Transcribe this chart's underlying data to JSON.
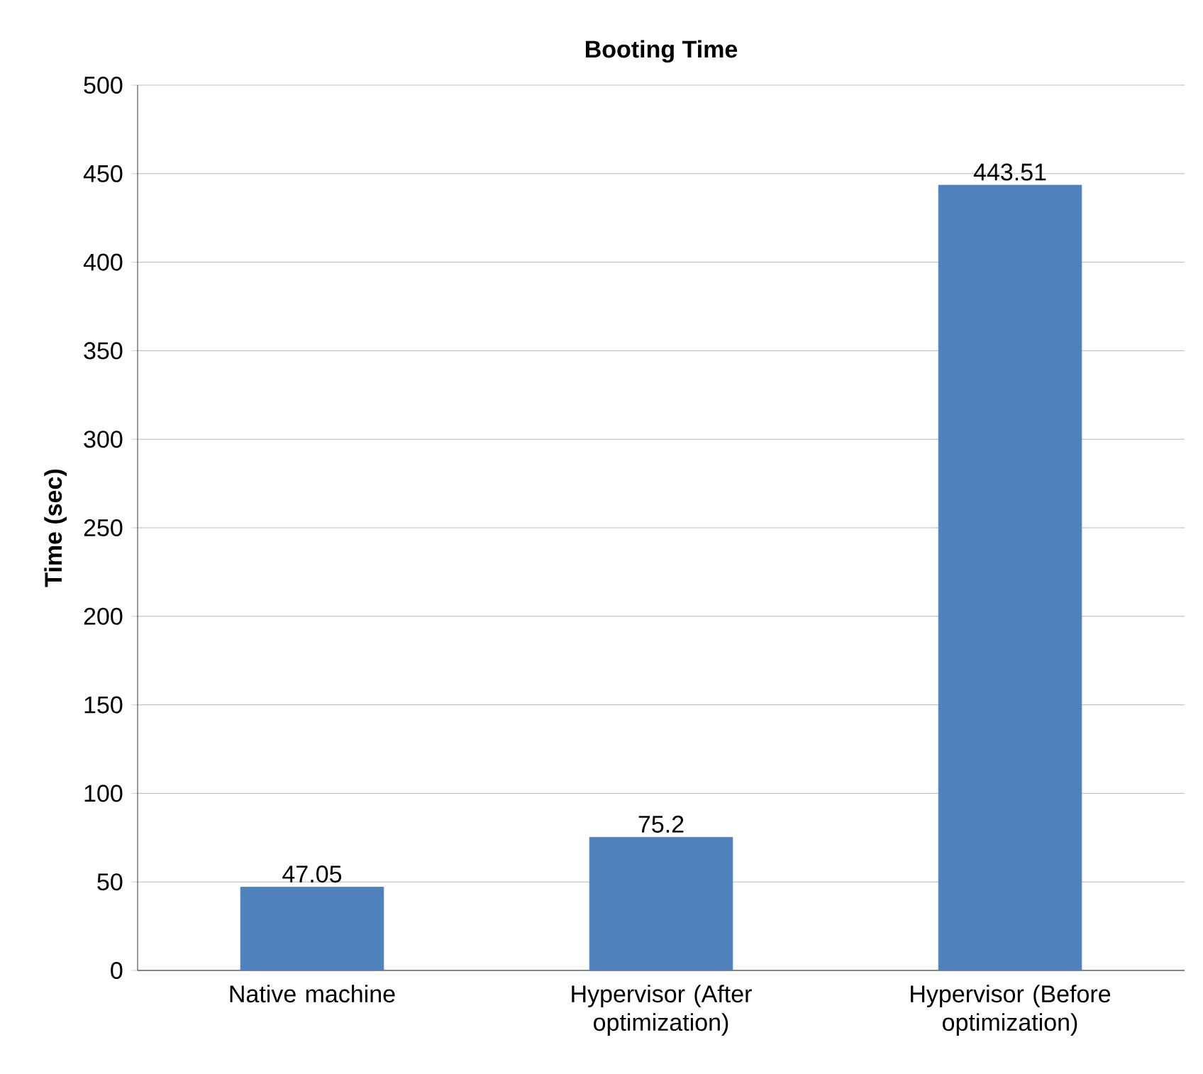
{
  "chart_data": {
    "type": "bar",
    "title": "Booting Time",
    "ylabel": "Time (sec)",
    "categories": [
      "Native machine",
      "Hypervisor (After optimization)",
      "Hypervisor  (Before optimization)"
    ],
    "values": [
      47.05,
      75.2,
      443.51
    ],
    "color": "#4f81bd",
    "ylim": [
      0,
      500
    ],
    "yticks": [
      0,
      50,
      100,
      150,
      200,
      250,
      300,
      350,
      400,
      450,
      500
    ],
    "grid": "y",
    "data_labels": true
  }
}
